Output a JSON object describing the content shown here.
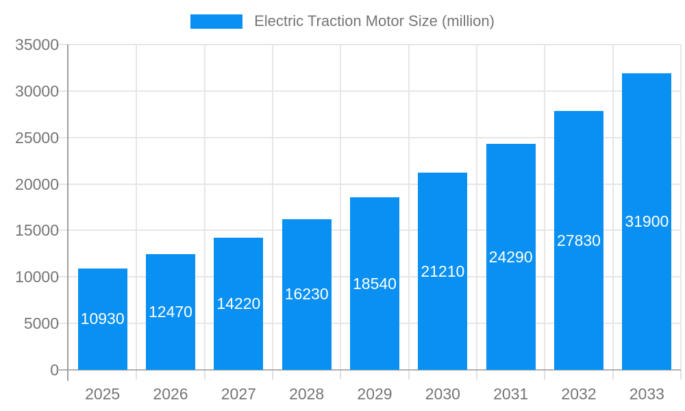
{
  "chart_data": {
    "type": "bar",
    "title": "Electric Traction Motor Size (million)",
    "categories": [
      "2025",
      "2026",
      "2027",
      "2028",
      "2029",
      "2030",
      "2031",
      "2032",
      "2033"
    ],
    "values": [
      10930,
      12470,
      14220,
      16230,
      18540,
      21210,
      24290,
      27830,
      31900
    ],
    "series": [
      {
        "name": "Electric Traction Motor Size (million)",
        "values": [
          10930,
          12470,
          14220,
          16230,
          18540,
          21210,
          24290,
          27830,
          31900
        ]
      }
    ],
    "xlabel": "",
    "ylabel": "",
    "ylim": [
      0,
      35000
    ],
    "y_ticks": [
      0,
      5000,
      10000,
      15000,
      20000,
      25000,
      30000,
      35000
    ],
    "grid": "on",
    "legend_position": "top-center",
    "bar_value_labels": "white, centered inside bars",
    "colors": {
      "bar": "#0990F2",
      "bar_label": "#FFFFFF",
      "axis_text": "#757575",
      "grid_line": "#E6E6E6",
      "tick_line": "#E0E0E0",
      "axis_line": "#9E9E9E",
      "baseline": "#B0B0B0",
      "background": "#FFFFFF"
    }
  }
}
